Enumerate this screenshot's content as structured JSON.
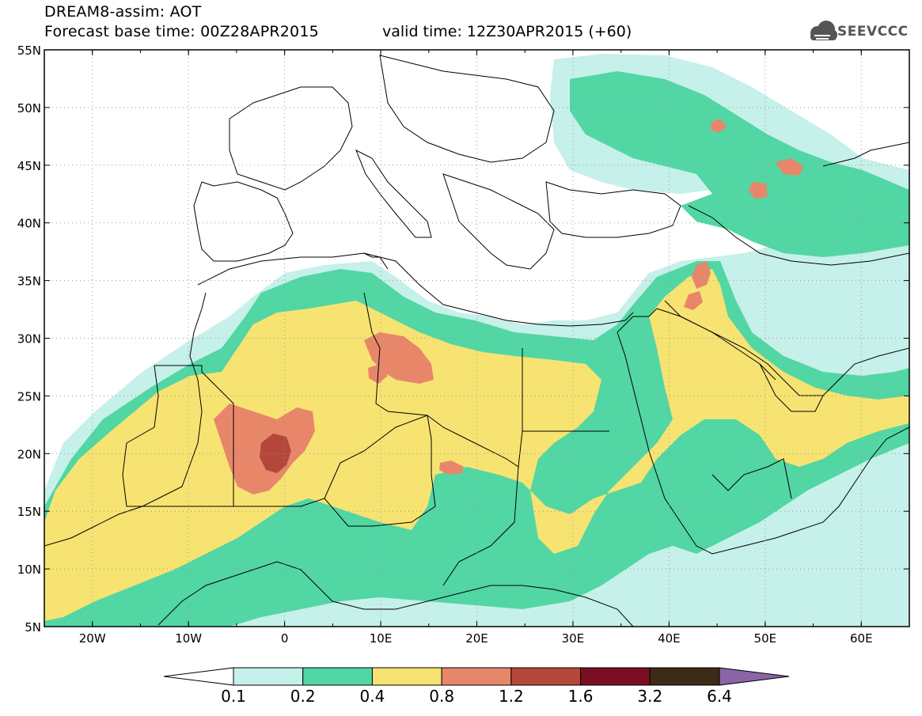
{
  "header": {
    "title_line1": "DREAM8-assim: AOT",
    "title_line2": "Forecast base time: 00Z28APR2015",
    "valid_time": "valid time: 12Z30APR2015 (+60)"
  },
  "logo": {
    "text": "SEEVCCC",
    "icon": "cloud-logo-icon"
  },
  "axes": {
    "lat_labels": [
      "55N",
      "50N",
      "45N",
      "40N",
      "35N",
      "30N",
      "25N",
      "20N",
      "15N",
      "10N",
      "5N"
    ],
    "lon_labels": [
      "20W",
      "10W",
      "0",
      "10E",
      "20E",
      "30E",
      "40E",
      "50E",
      "60E"
    ],
    "lat_range": [
      5,
      55
    ],
    "lon_range": [
      -25,
      65
    ],
    "grid": "dotted"
  },
  "colorbar": {
    "labels": [
      "0.1",
      "0.2",
      "0.4",
      "0.8",
      "1.2",
      "1.6",
      "3.2",
      "6.4"
    ],
    "colors": [
      "#ffffff",
      "#c6f0ea",
      "#52d6a4",
      "#f7e372",
      "#e8866a",
      "#b4473a",
      "#7a0f24",
      "#3d2a17",
      "#8a64a6"
    ]
  },
  "chart_data": {
    "type": "heatmap",
    "variable": "AOT",
    "levels": [
      0.1,
      0.2,
      0.4,
      0.8,
      1.2,
      1.6,
      3.2,
      6.4
    ],
    "xlabel": "",
    "ylabel": "",
    "xlim": [
      -25,
      65
    ],
    "ylim": [
      5,
      55
    ]
  }
}
